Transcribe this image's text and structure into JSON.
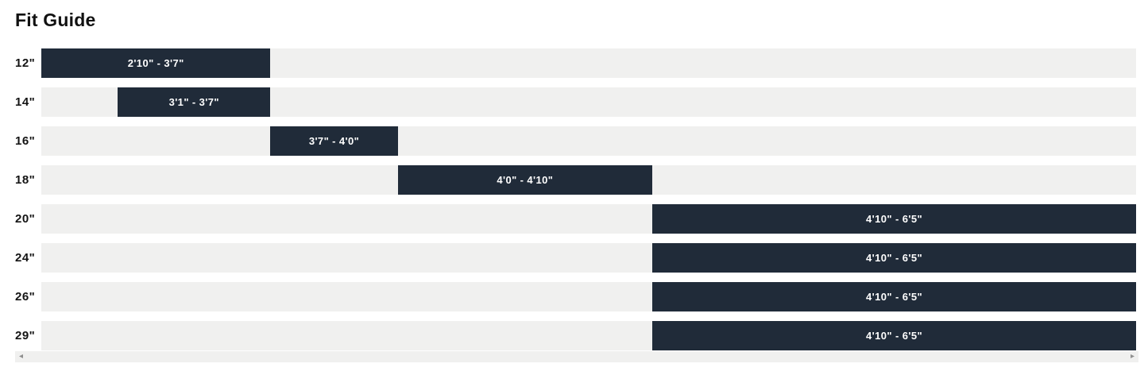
{
  "chart_data": {
    "type": "bar",
    "variant": "horizontal_range",
    "title": "Fit Guide",
    "categories": [
      "12\"",
      "14\"",
      "16\"",
      "18\"",
      "20\"",
      "24\"",
      "26\"",
      "29\""
    ],
    "range_labels": [
      "2'10\" - 3'7\"",
      "3'1\" - 3'7\"",
      "3'7\" - 4'0\"",
      "4'0\" - 4'10\"",
      "4'10\" - 6'5\"",
      "4'10\" - 6'5\"",
      "4'10\" - 6'5\"",
      "4'10\" - 6'5\""
    ],
    "ranges_inches": [
      [
        34,
        43
      ],
      [
        37,
        43
      ],
      [
        43,
        48
      ],
      [
        48,
        58
      ],
      [
        58,
        77
      ],
      [
        58,
        77
      ],
      [
        58,
        77
      ],
      [
        58,
        77
      ]
    ],
    "xlim_inches": [
      34,
      77
    ],
    "xlabel": "",
    "ylabel": "",
    "grid": false,
    "legend": false,
    "colors": {
      "bar": "#202b39",
      "track": "#f0f0ef",
      "bar_text": "#ffffff",
      "label_text": "#141414",
      "title_text": "#111111"
    }
  },
  "scrollbar": {
    "left_icon": "◂",
    "right_icon": "▸"
  }
}
